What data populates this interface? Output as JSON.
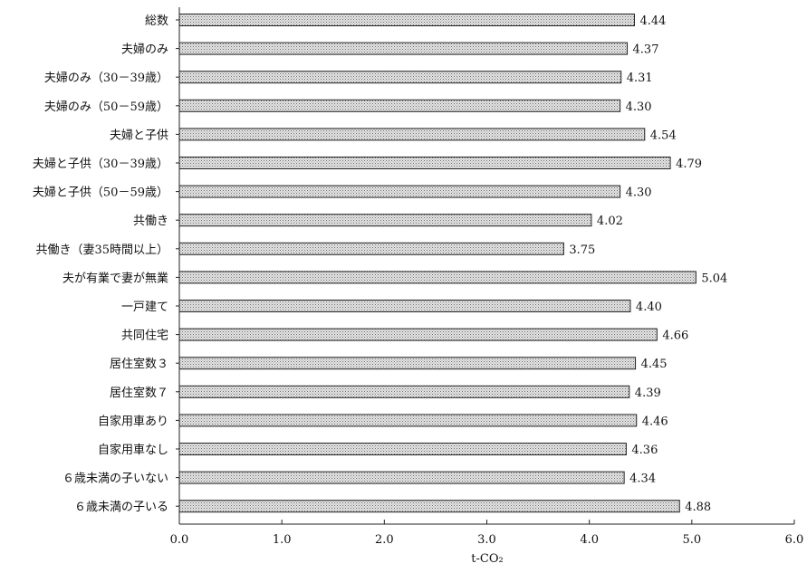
{
  "chart_data": {
    "type": "bar",
    "orientation": "horizontal",
    "categories": [
      "総数",
      "夫婦のみ",
      "夫婦のみ（30－39歳）",
      "夫婦のみ（50－59歳）",
      "夫婦と子供",
      "夫婦と子供（30－39歳）",
      "夫婦と子供（50－59歳）",
      "共働き",
      "共働き（妻35時間以上）",
      "夫が有業で妻が無業",
      "一戸建て",
      "共同住宅",
      "居住室数３",
      "居住室数７",
      "自家用車あり",
      "自家用車なし",
      "６歳未満の子いない",
      "６歳未満の子いる"
    ],
    "values": [
      4.44,
      4.37,
      4.31,
      4.3,
      4.54,
      4.79,
      4.3,
      4.02,
      3.75,
      5.04,
      4.4,
      4.66,
      4.45,
      4.39,
      4.46,
      4.36,
      4.34,
      4.88
    ],
    "value_labels": [
      "4.44",
      "4.37",
      "4.31",
      "4.30",
      "4.54",
      "4.79",
      "4.30",
      "4.02",
      "3.75",
      "5.04",
      "4.40",
      "4.66",
      "4.45",
      "4.39",
      "4.46",
      "4.36",
      "4.34",
      "4.88"
    ],
    "xlabel": "t-CO₂",
    "xlim": [
      0,
      6
    ],
    "xticks": [
      0,
      1,
      2,
      3,
      4,
      5,
      6
    ],
    "xtick_labels": [
      "0.0",
      "1.0",
      "2.0",
      "3.0",
      "4.0",
      "5.0",
      "6.0"
    ],
    "grid": false,
    "legend": "none",
    "bar_fill": "#c9c9c9",
    "bar_stroke": "#222222"
  }
}
